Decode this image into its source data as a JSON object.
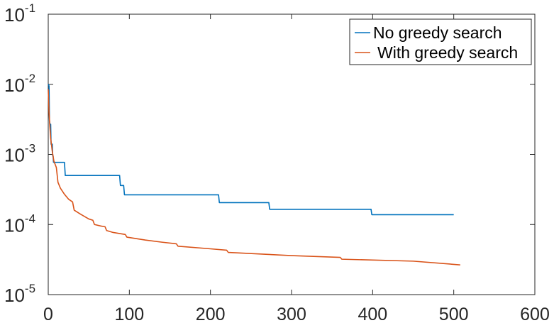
{
  "chart_data": {
    "type": "line",
    "title": "",
    "xlabel": "",
    "ylabel": "",
    "xlim": [
      0,
      600
    ],
    "ylim": [
      1e-05,
      0.1
    ],
    "yscale": "log",
    "grid": false,
    "legend_position": "top-right",
    "x_ticks": [
      0,
      100,
      200,
      300,
      400,
      500,
      600
    ],
    "x_tick_labels": [
      "0",
      "100",
      "200",
      "300",
      "400",
      "500",
      "600"
    ],
    "y_ticks": [
      1e-05,
      0.0001,
      0.001,
      0.01,
      0.1
    ],
    "y_tick_labels": [
      {
        "base": "10",
        "exp": "-5"
      },
      {
        "base": "10",
        "exp": "-4"
      },
      {
        "base": "10",
        "exp": "-3"
      },
      {
        "base": "10",
        "exp": "-2"
      },
      {
        "base": "10",
        "exp": "-1"
      }
    ],
    "series": [
      {
        "name": "No greedy search",
        "color": "#0072BD",
        "points": [
          [
            0,
            0.01
          ],
          [
            1,
            0.0095
          ],
          [
            1.5,
            0.003
          ],
          [
            2,
            0.0027
          ],
          [
            3,
            0.0027
          ],
          [
            3.5,
            0.0014
          ],
          [
            5,
            0.0014
          ],
          [
            5.5,
            0.00095
          ],
          [
            6,
            0.00095
          ],
          [
            6.5,
            0.00077
          ],
          [
            20,
            0.00077
          ],
          [
            21,
            0.0005
          ],
          [
            88,
            0.0005
          ],
          [
            89,
            0.00036
          ],
          [
            93,
            0.00036
          ],
          [
            94,
            0.000265
          ],
          [
            210,
            0.000265
          ],
          [
            211,
            0.000205
          ],
          [
            272,
            0.000205
          ],
          [
            273,
            0.000165
          ],
          [
            398,
            0.000165
          ],
          [
            399,
            0.000138
          ],
          [
            500,
            0.000138
          ]
        ]
      },
      {
        "name": "With greedy search",
        "color": "#D95319",
        "points": [
          [
            0,
            0.0085
          ],
          [
            1,
            0.004
          ],
          [
            2,
            0.0025
          ],
          [
            3,
            0.0017
          ],
          [
            5,
            0.0011
          ],
          [
            7,
            0.0008
          ],
          [
            10,
            0.00065
          ],
          [
            12,
            0.0004
          ],
          [
            15,
            0.00033
          ],
          [
            20,
            0.00027
          ],
          [
            25,
            0.00023
          ],
          [
            30,
            0.00021
          ],
          [
            32,
            0.00016
          ],
          [
            40,
            0.00014
          ],
          [
            50,
            0.00012
          ],
          [
            55,
            0.000115
          ],
          [
            57,
            0.0001
          ],
          [
            65,
            9.5e-05
          ],
          [
            70,
            9.3e-05
          ],
          [
            72,
            8.2e-05
          ],
          [
            80,
            7.7e-05
          ],
          [
            95,
            7.2e-05
          ],
          [
            97,
            6.6e-05
          ],
          [
            120,
            6e-05
          ],
          [
            140,
            5.6e-05
          ],
          [
            158,
            5.3e-05
          ],
          [
            160,
            4.9e-05
          ],
          [
            200,
            4.5e-05
          ],
          [
            220,
            4.3e-05
          ],
          [
            222,
            4e-05
          ],
          [
            300,
            3.6e-05
          ],
          [
            360,
            3.4e-05
          ],
          [
            362,
            3.2e-05
          ],
          [
            450,
            3e-05
          ],
          [
            500,
            2.7e-05
          ],
          [
            508,
            2.65e-05
          ]
        ]
      }
    ]
  }
}
